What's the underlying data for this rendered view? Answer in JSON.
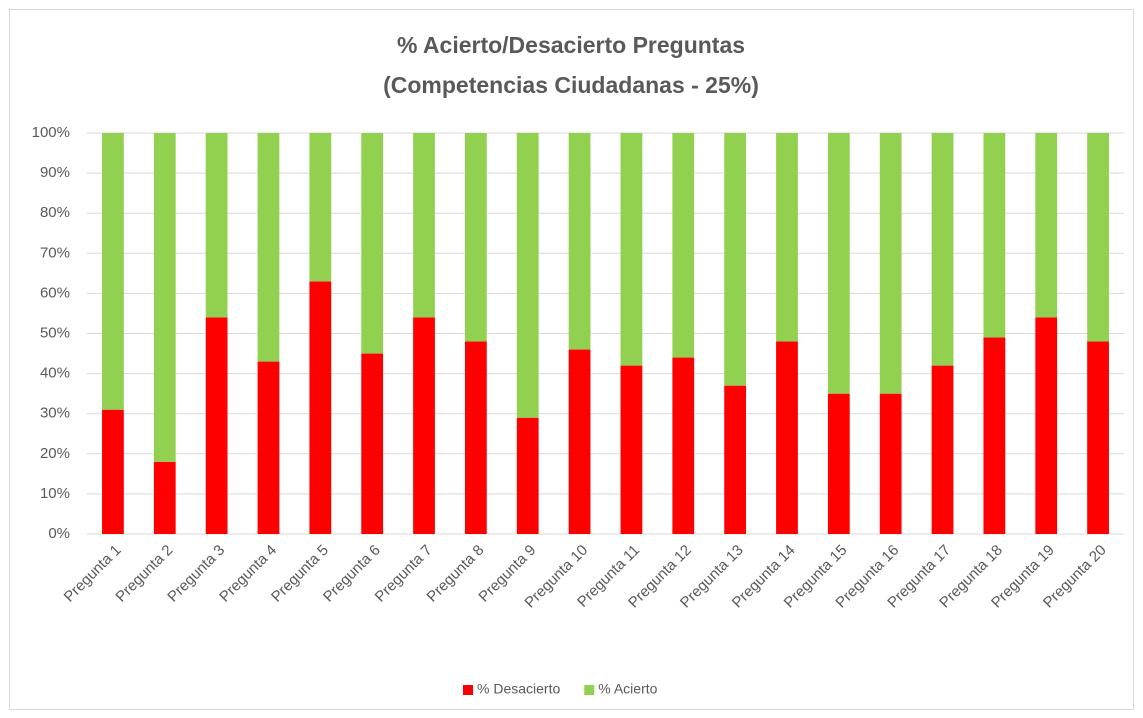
{
  "chart_data": {
    "type": "bar",
    "stacked": true,
    "title": [
      "% Acierto/Desacierto Preguntas",
      "(Competencias Ciudadanas - 25%)"
    ],
    "categories": [
      "Pregunta 1",
      "Pregunta 2",
      "Pregunta 3",
      "Pregunta 4",
      "Pregunta 5",
      "Pregunta 6",
      "Pregunta 7",
      "Pregunta 8",
      "Pregunta 9",
      "Pregunta 10",
      "Pregunta 11",
      "Pregunta 12",
      "Pregunta 13",
      "Pregunta 14",
      "Pregunta 15",
      "Pregunta 16",
      "Pregunta 17",
      "Pregunta 18",
      "Pregunta 19",
      "Pregunta 20"
    ],
    "series": [
      {
        "name": "% Desacierto",
        "color": "#ff0000",
        "values": [
          31,
          18,
          54,
          43,
          63,
          45,
          54,
          48,
          29,
          46,
          42,
          44,
          37,
          48,
          35,
          35,
          42,
          49,
          54,
          48
        ]
      },
      {
        "name": "% Acierto",
        "color": "#92d050",
        "values": [
          69,
          82,
          46,
          57,
          37,
          55,
          46,
          52,
          71,
          54,
          58,
          56,
          63,
          52,
          65,
          65,
          58,
          51,
          46,
          52
        ]
      }
    ],
    "ylim": [
      0,
      100
    ],
    "yticks": [
      {
        "value": 0,
        "label": "0%"
      },
      {
        "value": 10,
        "label": "10%"
      },
      {
        "value": 20,
        "label": "20%"
      },
      {
        "value": 30,
        "label": "30%"
      },
      {
        "value": 40,
        "label": "40%"
      },
      {
        "value": 50,
        "label": "50%"
      },
      {
        "value": 60,
        "label": "60%"
      },
      {
        "value": 70,
        "label": "70%"
      },
      {
        "value": 80,
        "label": "80%"
      },
      {
        "value": 90,
        "label": "90%"
      },
      {
        "value": 100,
        "label": "100%"
      }
    ],
    "grid": true,
    "legend": "bottom"
  }
}
